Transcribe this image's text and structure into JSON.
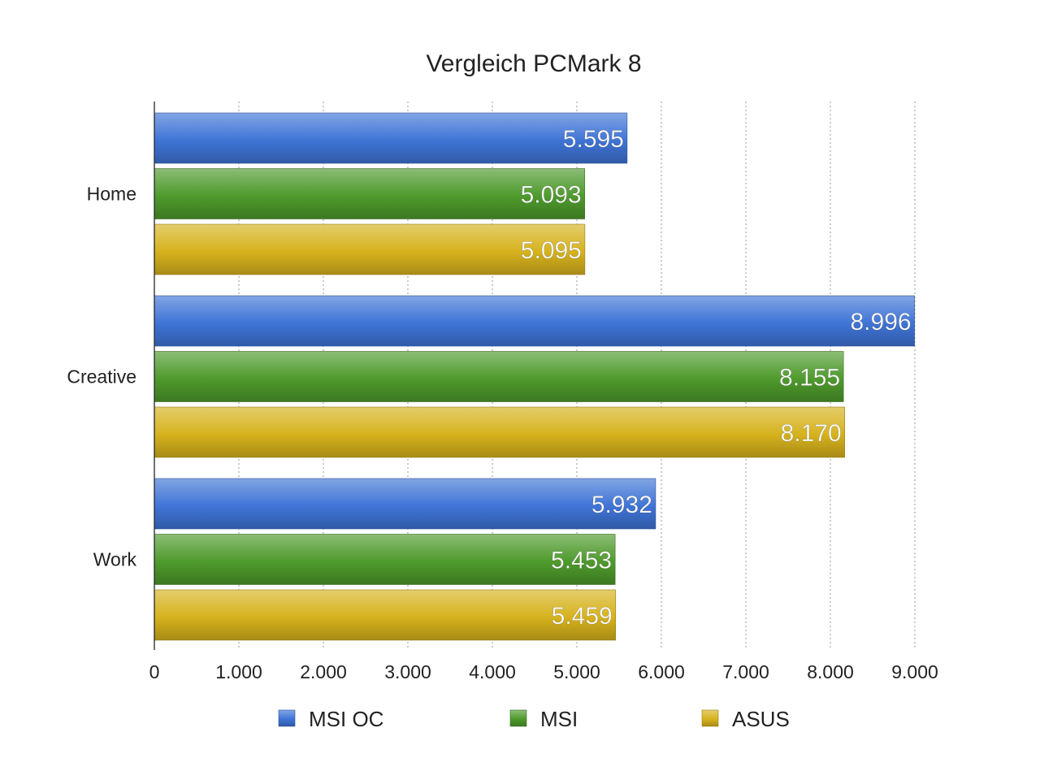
{
  "chart_data": {
    "type": "bar",
    "orientation": "horizontal",
    "title": "Vergleich PCMark 8",
    "categories": [
      "Home",
      "Creative",
      "Work"
    ],
    "series": [
      {
        "name": "MSI OC",
        "values": [
          5595,
          8996,
          5932
        ],
        "labels": [
          "5.595",
          "8.996",
          "5.932"
        ],
        "color": "#3f74d6"
      },
      {
        "name": "MSI",
        "values": [
          5093,
          8155,
          5453
        ],
        "labels": [
          "5.093",
          "8.155",
          "5.453"
        ],
        "color": "#4e9a2c"
      },
      {
        "name": "ASUS",
        "values": [
          5095,
          8170,
          5459
        ],
        "labels": [
          "5.095",
          "8.170",
          "5.459"
        ],
        "color": "#d6b21d"
      }
    ],
    "xlim": [
      0,
      9000
    ],
    "xticks": [
      0,
      1000,
      2000,
      3000,
      4000,
      5000,
      6000,
      7000,
      8000,
      9000
    ],
    "xtick_labels": [
      "0",
      "1.000",
      "2.000",
      "3.000",
      "4.000",
      "5.000",
      "6.000",
      "7.000",
      "8.000",
      "9.000"
    ],
    "grid": "vertical-dotted",
    "legend": "bottom"
  }
}
